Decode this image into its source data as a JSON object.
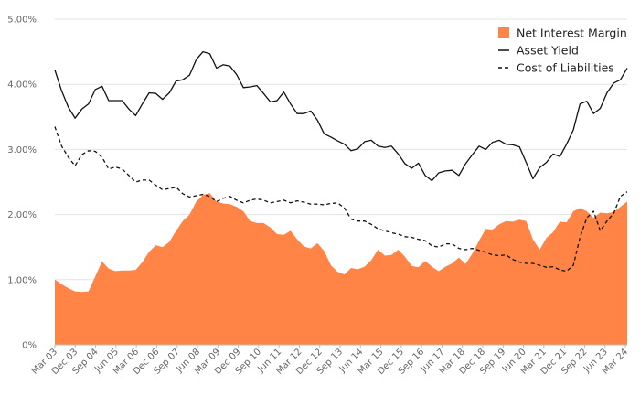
{
  "chart_data": {
    "type": "area",
    "y_tick_labels": [
      "0%",
      "1.00%",
      "2.00%",
      "3.00%",
      "4.00%",
      "5.00%"
    ],
    "y_ticks": [
      0,
      1,
      2,
      3,
      4,
      5
    ],
    "ylim": [
      0,
      5
    ],
    "x_tick_labels": [
      "Mar 03",
      "Dec 03",
      "Sep 04",
      "Jun 05",
      "Mar 06",
      "Dec 06",
      "Sep 07",
      "Jun 08",
      "Mar 09",
      "Dec 09",
      "Sep 10",
      "Jun 11",
      "Mar 12",
      "Dec 12",
      "Sep 13",
      "Jun 14",
      "Mar 15",
      "Dec 15",
      "Sep 16",
      "Jun 17",
      "Mar 18",
      "Dec 18",
      "Sep 19",
      "Jun 20",
      "Mar 21",
      "Dec 21",
      "Sep 22",
      "Jun 23",
      "Mar 24"
    ],
    "grid": true,
    "legend_position": "top-right",
    "colors": {
      "net_interest_margin": "#ff8446",
      "asset_yield": "#111111",
      "cost_of_liabilities": "#111111",
      "grid": "#e3e3e3",
      "axis": "#bbbbbb"
    },
    "series": [
      {
        "name": "Net Interest Margin",
        "style": "area",
        "values": [
          1.0,
          0.93,
          0.87,
          0.82,
          0.81,
          0.82,
          1.05,
          1.28,
          1.17,
          1.13,
          1.14,
          1.14,
          1.15,
          1.27,
          1.43,
          1.53,
          1.5,
          1.58,
          1.75,
          1.9,
          2.0,
          2.2,
          2.3,
          2.33,
          2.2,
          2.17,
          2.16,
          2.12,
          2.05,
          1.9,
          1.87,
          1.87,
          1.8,
          1.7,
          1.69,
          1.75,
          1.62,
          1.51,
          1.48,
          1.56,
          1.44,
          1.22,
          1.12,
          1.08,
          1.18,
          1.16,
          1.2,
          1.3,
          1.46,
          1.37,
          1.38,
          1.46,
          1.35,
          1.21,
          1.19,
          1.29,
          1.2,
          1.13,
          1.2,
          1.25,
          1.34,
          1.24,
          1.4,
          1.6,
          1.78,
          1.77,
          1.85,
          1.9,
          1.89,
          1.92,
          1.9,
          1.62,
          1.46,
          1.64,
          1.73,
          1.89,
          1.88,
          2.05,
          2.1,
          2.05,
          1.95,
          2.03,
          2.02,
          2.04,
          2.12,
          2.2
        ]
      },
      {
        "name": "Asset Yield",
        "style": "solid",
        "values": [
          4.22,
          3.9,
          3.65,
          3.48,
          3.62,
          3.7,
          3.92,
          3.97,
          3.75,
          3.75,
          3.75,
          3.62,
          3.52,
          3.7,
          3.87,
          3.86,
          3.77,
          3.87,
          4.05,
          4.07,
          4.14,
          4.38,
          4.5,
          4.47,
          4.25,
          4.3,
          4.28,
          4.15,
          3.95,
          3.96,
          3.98,
          3.86,
          3.73,
          3.75,
          3.88,
          3.7,
          3.55,
          3.55,
          3.59,
          3.45,
          3.24,
          3.19,
          3.13,
          3.08,
          2.98,
          3.01,
          3.12,
          3.14,
          3.05,
          3.03,
          3.05,
          2.93,
          2.78,
          2.71,
          2.79,
          2.6,
          2.52,
          2.64,
          2.67,
          2.68,
          2.6,
          2.78,
          2.92,
          3.05,
          3.0,
          3.11,
          3.14,
          3.08,
          3.07,
          3.04,
          2.8,
          2.55,
          2.72,
          2.8,
          2.93,
          2.89,
          3.08,
          3.3,
          3.7,
          3.74,
          3.55,
          3.63,
          3.87,
          4.02,
          4.07,
          4.25
        ]
      },
      {
        "name": "Cost of Liabilities",
        "style": "dashed",
        "values": [
          3.35,
          3.05,
          2.88,
          2.75,
          2.92,
          2.98,
          2.97,
          2.88,
          2.7,
          2.73,
          2.7,
          2.6,
          2.5,
          2.53,
          2.53,
          2.45,
          2.38,
          2.4,
          2.42,
          2.32,
          2.27,
          2.29,
          2.31,
          2.28,
          2.2,
          2.25,
          2.28,
          2.22,
          2.18,
          2.22,
          2.24,
          2.22,
          2.18,
          2.2,
          2.22,
          2.18,
          2.21,
          2.19,
          2.16,
          2.16,
          2.15,
          2.17,
          2.18,
          2.1,
          1.93,
          1.9,
          1.9,
          1.85,
          1.78,
          1.75,
          1.72,
          1.7,
          1.66,
          1.65,
          1.62,
          1.6,
          1.52,
          1.5,
          1.55,
          1.55,
          1.48,
          1.46,
          1.48,
          1.45,
          1.42,
          1.38,
          1.37,
          1.38,
          1.31,
          1.27,
          1.25,
          1.25,
          1.22,
          1.19,
          1.2,
          1.15,
          1.13,
          1.22,
          1.65,
          1.95,
          2.05,
          1.75,
          1.9,
          2.02,
          2.28,
          2.35
        ]
      }
    ]
  }
}
